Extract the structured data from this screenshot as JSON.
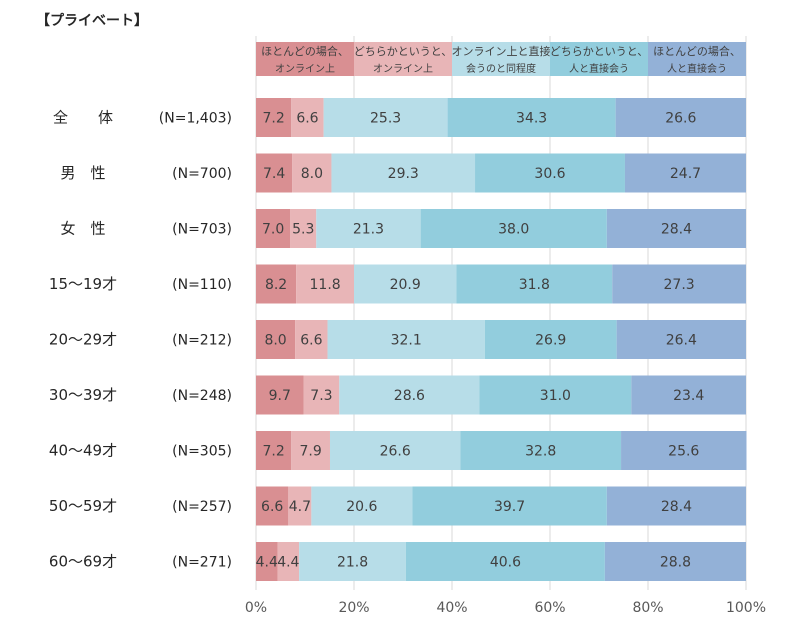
{
  "title": "【プライベート】",
  "chart_data": {
    "type": "bar",
    "orientation": "horizontal",
    "stacked": true,
    "categories": [
      "全　　体",
      "男　性",
      "女　性",
      "15～19才",
      "20～29才",
      "30～39才",
      "40～49才",
      "50～59才",
      "60～69才"
    ],
    "sample_sizes": [
      "(N=1,403)",
      "(N=700)",
      "(N=703)",
      "(N=110)",
      "(N=212)",
      "(N=248)",
      "(N=305)",
      "(N=257)",
      "(N=271)"
    ],
    "series": [
      {
        "name": [
          "ほとんどの場合、",
          "オンライン上"
        ],
        "color": "#d98f92",
        "values": [
          7.2,
          7.4,
          7.0,
          8.2,
          8.0,
          9.7,
          7.2,
          6.6,
          4.4
        ]
      },
      {
        "name": [
          "どちらかというと、",
          "オンライン上"
        ],
        "color": "#e8b5b7",
        "values": [
          6.6,
          8.0,
          5.3,
          11.8,
          6.6,
          7.3,
          7.9,
          4.7,
          4.4
        ]
      },
      {
        "name": [
          "オンライン上と直接",
          "会うのと同程度"
        ],
        "color": "#b7dde8",
        "values": [
          25.3,
          29.3,
          21.3,
          20.9,
          32.1,
          28.6,
          26.6,
          20.6,
          21.8
        ]
      },
      {
        "name": [
          "どちらかというと、",
          "人と直接会う"
        ],
        "color": "#92cddd",
        "values": [
          34.3,
          30.6,
          38.0,
          31.8,
          26.9,
          31.0,
          32.8,
          39.7,
          40.6
        ]
      },
      {
        "name": [
          "ほとんどの場合、",
          "人と直接会う"
        ],
        "color": "#93b1d7",
        "values": [
          26.6,
          24.7,
          28.4,
          27.3,
          26.4,
          23.4,
          25.6,
          28.4,
          28.8
        ]
      }
    ],
    "xlim": [
      0,
      100
    ],
    "xticks": [
      "0%",
      "20%",
      "40%",
      "60%",
      "80%",
      "100%"
    ],
    "grid": true,
    "legend": "top"
  }
}
